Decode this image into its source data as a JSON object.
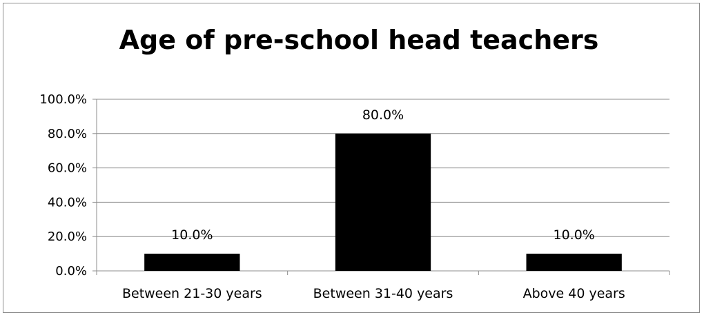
{
  "chart_data": {
    "type": "bar",
    "title": "Age of pre-school head teachers",
    "categories": [
      "Between 21-30 years",
      "Between 31-40 years",
      "Above 40 years"
    ],
    "values": [
      10.0,
      80.0,
      10.0
    ],
    "data_labels": [
      "10.0%",
      "80.0%",
      "10.0%"
    ],
    "ylim": [
      0,
      100
    ],
    "yticks": [
      "0.0%",
      "20.0%",
      "40.0%",
      "60.0%",
      "80.0%",
      "100.0%"
    ],
    "xlabel": "",
    "ylabel": "",
    "grid": true,
    "legend": "none",
    "bar_color": "#000000"
  }
}
